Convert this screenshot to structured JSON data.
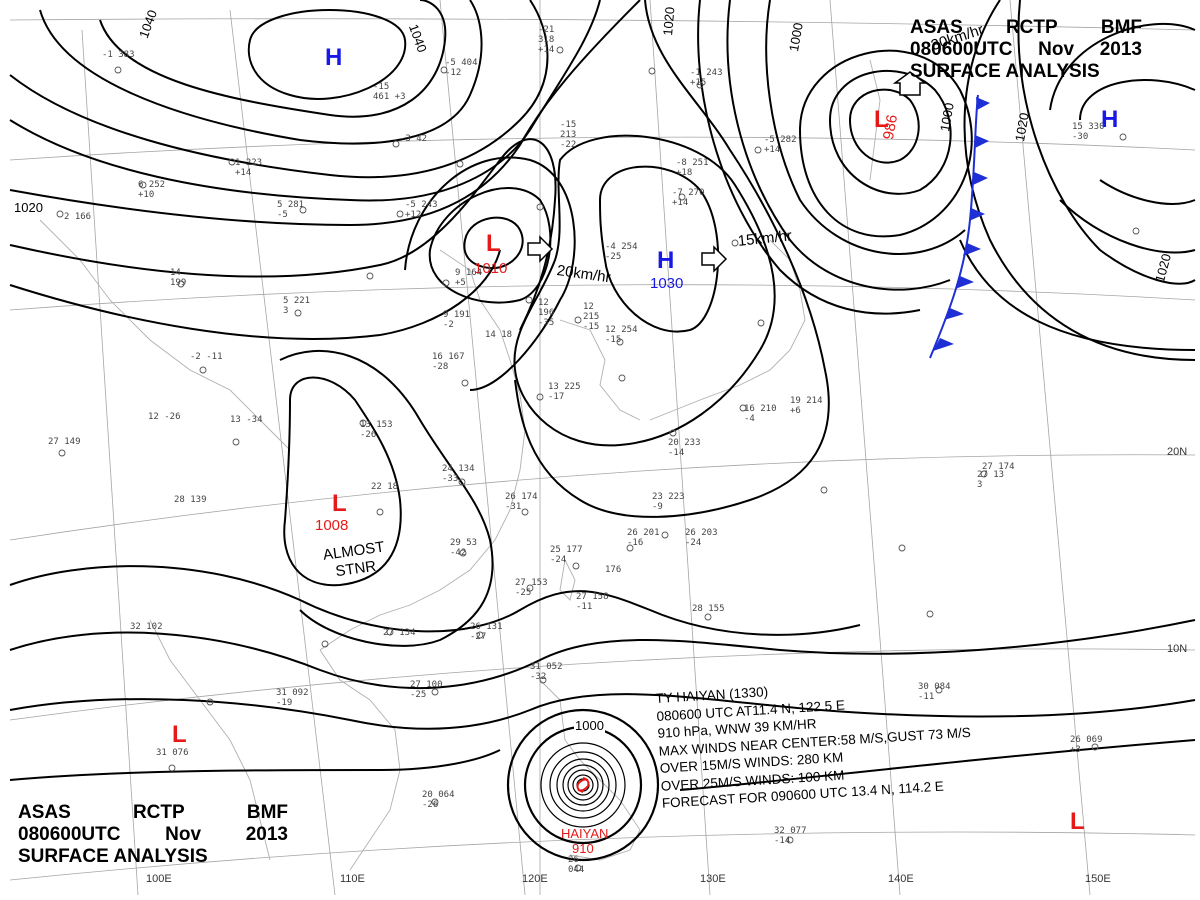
{
  "header_top": {
    "line1": [
      "ASAS",
      "RCTP",
      "BMF"
    ],
    "line2": [
      "080600UTC",
      "Nov",
      "2013"
    ],
    "line3": "SURFACE  ANALYSIS"
  },
  "header_bottom": {
    "line1": [
      "ASAS",
      "RCTP",
      "BMF"
    ],
    "line2": [
      "080600UTC",
      "Nov",
      "2013"
    ],
    "line3": "SURFACE  ANALYSIS"
  },
  "pressure_centers": [
    {
      "id": "high-north",
      "type": "H",
      "value": ""
    },
    {
      "id": "low-1010",
      "type": "L",
      "value": "1010"
    },
    {
      "id": "high-1030",
      "type": "H",
      "value": "1030"
    },
    {
      "id": "low-986",
      "type": "L",
      "value": "986"
    },
    {
      "id": "high-east",
      "type": "H",
      "value": ""
    },
    {
      "id": "low-1008",
      "type": "L",
      "value": "1008"
    },
    {
      "id": "low-southwest",
      "type": "L",
      "value": ""
    },
    {
      "id": "low-southeast",
      "type": "L",
      "value": ""
    }
  ],
  "movement": [
    {
      "id": "move-low",
      "text": "20km/hr"
    },
    {
      "id": "move-high",
      "text": "15km/hr"
    },
    {
      "id": "move-ne",
      "text": "30km/hr"
    }
  ],
  "almost_stnr": {
    "line1": "ALMOST",
    "line2": "STNR"
  },
  "typhoon": {
    "name": "HAIYAN",
    "pressure": "910",
    "info_lines": [
      "TY  HAIYAN  (1330)",
      "080600  UTC  AT11.4 N, 122.5 E",
      "910 hPa, WNW  39 KM/HR",
      "MAX WINDS NEAR CENTER:58 M/S,GUST 73 M/S",
      "OVER 15M/S WINDS: 280 KM",
      "OVER 25M/S WINDS: 100 KM",
      "FORECAST FOR 090600 UTC 13.4 N, 114.2 E"
    ]
  },
  "isobar_labels": [
    "1040",
    "1040",
    "1020",
    "1020",
    "1000",
    "1000",
    "1020",
    "1020",
    "1000"
  ],
  "lat_labels": [
    "20N",
    "10N"
  ],
  "lon_labels": [
    "100E",
    "110E",
    "120E",
    "130E",
    "140E",
    "150E"
  ],
  "colors": {
    "high": "#1919e6",
    "low": "#e61919",
    "front": "#1e2fd6",
    "isobar": "#000000",
    "grid": "#9a9a9a"
  },
  "station_obs": [
    {
      "id": "obs-01",
      "text": "-1 383"
    },
    {
      "id": "obs-02",
      "text": "-21 318 +14"
    },
    {
      "id": "obs-03",
      "text": "-5 404 -12"
    },
    {
      "id": "obs-04",
      "text": "-15 461 +3"
    },
    {
      "id": "obs-05",
      "text": "-1 243 +15"
    },
    {
      "id": "obs-06",
      "text": "-3 42"
    },
    {
      "id": "obs-07",
      "text": "-15 213 -22"
    },
    {
      "id": "obs-08",
      "text": "1 223 +14"
    },
    {
      "id": "obs-09",
      "text": "6 252 +10"
    },
    {
      "id": "obs-10",
      "text": "5 281 -5"
    },
    {
      "id": "obs-11",
      "text": "-5 243 +12"
    },
    {
      "id": "obs-12",
      "text": "2 166"
    },
    {
      "id": "obs-13",
      "text": "14 199"
    },
    {
      "id": "obs-14",
      "text": "9 164 +5"
    },
    {
      "id": "obs-15",
      "text": "12 196 -35"
    },
    {
      "id": "obs-16",
      "text": "-8 251 +18"
    },
    {
      "id": "obs-17",
      "text": "-7 270 +14"
    },
    {
      "id": "obs-18",
      "text": "-5 282 +14"
    },
    {
      "id": "obs-19",
      "text": "-4 254 -25"
    },
    {
      "id": "obs-20",
      "text": "5 221 3"
    },
    {
      "id": "obs-21",
      "text": "9 191 -2"
    },
    {
      "id": "obs-22",
      "text": "16 167 -28"
    },
    {
      "id": "obs-23",
      "text": "14 18"
    },
    {
      "id": "obs-24",
      "text": "12 215 -15"
    },
    {
      "id": "obs-25",
      "text": "12 254 -15"
    },
    {
      "id": "obs-26",
      "text": "-2 -11"
    },
    {
      "id": "obs-27",
      "text": "13 -34"
    },
    {
      "id": "obs-28",
      "text": "12 -26"
    },
    {
      "id": "obs-29",
      "text": "27 149"
    },
    {
      "id": "obs-30",
      "text": "13 153 -26"
    },
    {
      "id": "obs-31",
      "text": "24 134 -33"
    },
    {
      "id": "obs-32",
      "text": "28 139"
    },
    {
      "id": "obs-33",
      "text": "22 18"
    },
    {
      "id": "obs-34",
      "text": "26 174 -31"
    },
    {
      "id": "obs-35",
      "text": "29 53 -42"
    },
    {
      "id": "obs-36",
      "text": "25 177 -24"
    },
    {
      "id": "obs-37",
      "text": "176"
    },
    {
      "id": "obs-38",
      "text": "26 201 -16"
    },
    {
      "id": "obs-39",
      "text": "26 203 -24"
    },
    {
      "id": "obs-40",
      "text": "23 223 -9"
    },
    {
      "id": "obs-41",
      "text": "13 225 -17"
    },
    {
      "id": "obs-42",
      "text": "20 233 -14"
    },
    {
      "id": "obs-43",
      "text": "16 210 -4"
    },
    {
      "id": "obs-44",
      "text": "19 214 +6"
    },
    {
      "id": "obs-45",
      "text": "27 174"
    },
    {
      "id": "obs-46",
      "text": "27 158 -11"
    },
    {
      "id": "obs-47",
      "text": "27 153 -25"
    },
    {
      "id": "obs-48",
      "text": "28 155"
    },
    {
      "id": "obs-49",
      "text": "26 131 -27"
    },
    {
      "id": "obs-50",
      "text": "27 134"
    },
    {
      "id": "obs-51",
      "text": "32 102"
    },
    {
      "id": "obs-52",
      "text": "31 092 -19"
    },
    {
      "id": "obs-53",
      "text": "27 100 -25"
    },
    {
      "id": "obs-54",
      "text": "31 052 -32"
    },
    {
      "id": "obs-55",
      "text": "31 076"
    },
    {
      "id": "obs-56",
      "text": "20 064 -26"
    },
    {
      "id": "obs-57",
      "text": "26 044"
    },
    {
      "id": "obs-58",
      "text": "32 077 -14"
    },
    {
      "id": "obs-59",
      "text": "30 084 -11"
    },
    {
      "id": "obs-60",
      "text": "26 069 +3"
    },
    {
      "id": "obs-61",
      "text": "15 330 -30"
    },
    {
      "id": "obs-62",
      "text": "27 13 3"
    }
  ]
}
